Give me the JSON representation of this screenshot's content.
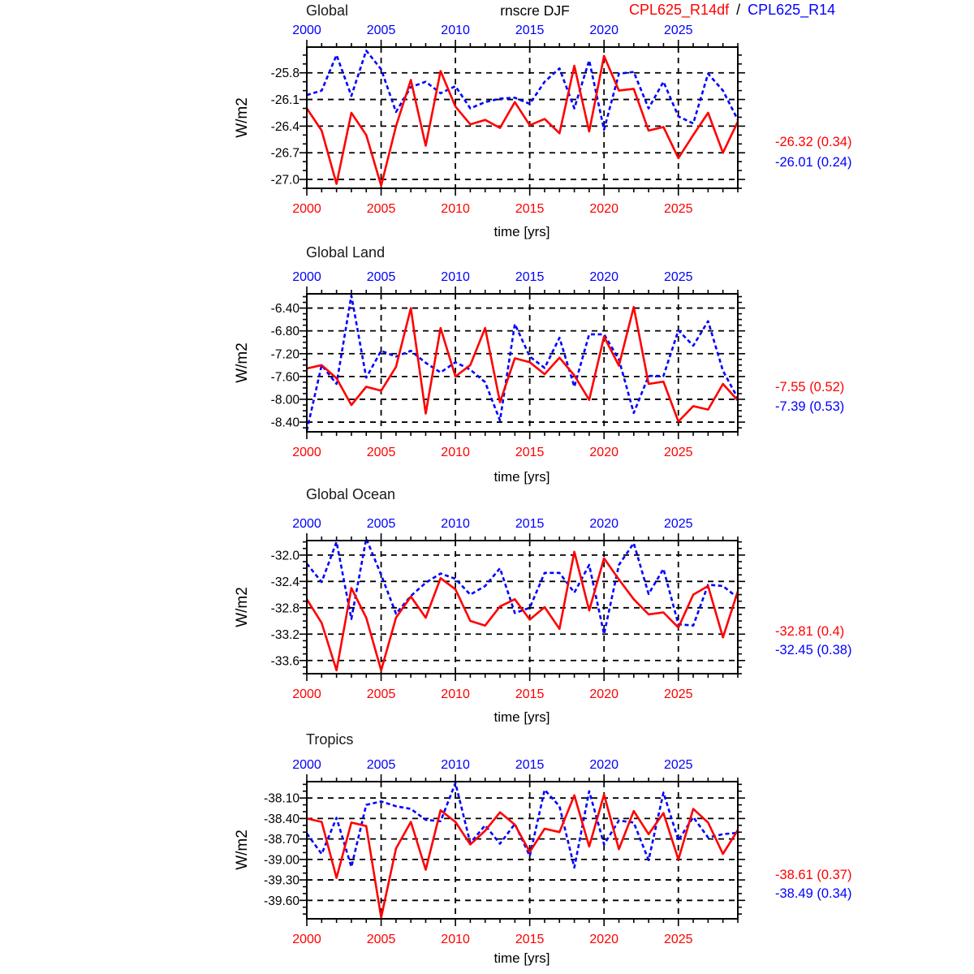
{
  "page": {
    "background": "#ffffff"
  },
  "header": {
    "center_title": "rnscre DJF",
    "legend": {
      "red_label": "CPL625_R14df",
      "separator": "/",
      "blue_label": "CPL625_R14"
    }
  },
  "colors": {
    "red": "#ff0000",
    "blue": "#0000ff",
    "axis": "#000000",
    "background": "#ffffff"
  },
  "chart_data": [
    {
      "type": "line",
      "title": "Global",
      "xlabel": "time [yrs]",
      "ylabel": "W/m2",
      "x_first": 2000,
      "x_last": 2029,
      "xticks": [
        2000,
        2005,
        2010,
        2015,
        2020,
        2025
      ],
      "yticks": [
        -25.8,
        -26.1,
        -26.4,
        -26.7,
        -27.0
      ],
      "ytick_decimals": 1,
      "y_minor_step": 0.1,
      "ylim": [
        -27.1,
        -25.51
      ],
      "grid": "dashed",
      "series": [
        {
          "name": "CPL625_R14df",
          "color": "#ff0000",
          "style": "solid",
          "values": [
            -26.2,
            -26.45,
            -27.05,
            -26.25,
            -26.5,
            -27.07,
            -26.4,
            -25.88,
            -26.62,
            -25.78,
            -26.18,
            -26.38,
            -26.33,
            -26.42,
            -26.13,
            -26.39,
            -26.32,
            -26.48,
            -25.72,
            -26.46,
            -25.61,
            -26.0,
            -25.98,
            -26.45,
            -26.41,
            -26.76,
            -26.5,
            -26.25,
            -26.7,
            -26.35
          ]
        },
        {
          "name": "CPL625_R14",
          "color": "#0000ff",
          "style": "dashed",
          "values": [
            -26.05,
            -26.0,
            -25.6,
            -26.06,
            -25.55,
            -25.76,
            -26.24,
            -25.96,
            -25.9,
            -26.03,
            -25.95,
            -26.2,
            -26.13,
            -26.09,
            -26.08,
            -26.15,
            -25.9,
            -25.75,
            -26.2,
            -25.66,
            -26.44,
            -25.81,
            -25.79,
            -26.2,
            -25.9,
            -26.29,
            -26.37,
            -25.81,
            -26.0,
            -26.33
          ]
        }
      ],
      "stats": [
        {
          "label": "-26.32 (0.34)",
          "color": "#ff0000"
        },
        {
          "label": "-26.01 (0.24)",
          "color": "#0000ff"
        }
      ]
    },
    {
      "type": "line",
      "title": "Global Land",
      "xlabel": "time [yrs]",
      "ylabel": "W/m2",
      "x_first": 2000,
      "x_last": 2029,
      "xticks": [
        2000,
        2005,
        2010,
        2015,
        2020,
        2025
      ],
      "yticks": [
        -6.4,
        -6.8,
        -7.2,
        -7.6,
        -8.0,
        -8.4
      ],
      "ytick_decimals": 2,
      "y_minor_step": 0.1,
      "ylim": [
        -8.57,
        -6.15
      ],
      "grid": "dashed",
      "series": [
        {
          "name": "CPL625_R14df",
          "color": "#ff0000",
          "style": "solid",
          "values": [
            -7.46,
            -7.4,
            -7.63,
            -8.1,
            -7.78,
            -7.85,
            -7.43,
            -6.4,
            -8.25,
            -6.75,
            -7.6,
            -7.4,
            -6.75,
            -8.05,
            -7.28,
            -7.35,
            -7.56,
            -7.27,
            -7.58,
            -8.01,
            -6.9,
            -7.41,
            -6.38,
            -7.73,
            -7.69,
            -8.39,
            -8.12,
            -8.18,
            -7.73,
            -8.02
          ]
        },
        {
          "name": "CPL625_R14",
          "color": "#0000ff",
          "style": "dashed",
          "values": [
            -8.55,
            -7.4,
            -7.73,
            -6.18,
            -7.62,
            -7.15,
            -7.25,
            -7.15,
            -7.36,
            -7.53,
            -7.35,
            -7.48,
            -7.7,
            -8.37,
            -6.68,
            -7.25,
            -7.45,
            -6.92,
            -7.78,
            -6.86,
            -6.86,
            -7.3,
            -8.24,
            -7.59,
            -7.59,
            -6.79,
            -7.06,
            -6.63,
            -7.5,
            -7.98
          ]
        }
      ],
      "stats": [
        {
          "label": "-7.55 (0.52)",
          "color": "#ff0000"
        },
        {
          "label": "-7.39 (0.53)",
          "color": "#0000ff"
        }
      ]
    },
    {
      "type": "line",
      "title": "Global Ocean",
      "xlabel": "time [yrs]",
      "ylabel": "W/m2",
      "x_first": 2000,
      "x_last": 2029,
      "xticks": [
        2000,
        2005,
        2010,
        2015,
        2020,
        2025
      ],
      "yticks": [
        -32.0,
        -32.4,
        -32.8,
        -33.2,
        -33.6
      ],
      "ytick_decimals": 1,
      "y_minor_step": 0.1,
      "ylim": [
        -33.8,
        -31.78
      ],
      "grid": "dashed",
      "series": [
        {
          "name": "CPL625_R14df",
          "color": "#ff0000",
          "style": "solid",
          "values": [
            -32.67,
            -33.03,
            -33.75,
            -32.5,
            -32.95,
            -33.75,
            -32.95,
            -32.63,
            -32.95,
            -32.35,
            -32.52,
            -33.0,
            -33.07,
            -32.78,
            -32.67,
            -32.98,
            -32.79,
            -33.12,
            -31.95,
            -32.84,
            -32.05,
            -32.37,
            -32.67,
            -32.9,
            -32.87,
            -33.1,
            -32.6,
            -32.47,
            -33.25,
            -32.55
          ]
        },
        {
          "name": "CPL625_R14",
          "color": "#0000ff",
          "style": "dashed",
          "values": [
            -32.13,
            -32.41,
            -31.8,
            -32.97,
            -31.75,
            -32.3,
            -32.89,
            -32.62,
            -32.42,
            -32.28,
            -32.36,
            -32.6,
            -32.47,
            -32.2,
            -32.88,
            -32.8,
            -32.27,
            -32.27,
            -32.57,
            -32.15,
            -33.2,
            -32.15,
            -31.82,
            -32.59,
            -32.21,
            -33.05,
            -33.07,
            -32.45,
            -32.47,
            -32.65
          ]
        }
      ],
      "stats": [
        {
          "label": "-32.81 (0.4)",
          "color": "#ff0000"
        },
        {
          "label": "-32.45 (0.38)",
          "color": "#0000ff"
        }
      ]
    },
    {
      "type": "line",
      "title": "Tropics",
      "xlabel": "time [yrs]",
      "ylabel": "W/m2",
      "x_first": 2000,
      "x_last": 2029,
      "xticks": [
        2000,
        2005,
        2010,
        2015,
        2020,
        2025
      ],
      "yticks": [
        -38.1,
        -38.4,
        -38.7,
        -39.0,
        -39.3,
        -39.6
      ],
      "ytick_decimals": 2,
      "y_minor_step": 0.1,
      "ylim": [
        -39.87,
        -37.86
      ],
      "grid": "dashed",
      "series": [
        {
          "name": "CPL625_R14df",
          "color": "#ff0000",
          "style": "solid",
          "values": [
            -38.4,
            -38.45,
            -39.27,
            -38.46,
            -38.51,
            -39.85,
            -38.84,
            -38.45,
            -39.15,
            -38.28,
            -38.45,
            -38.78,
            -38.58,
            -38.31,
            -38.49,
            -38.89,
            -38.55,
            -38.6,
            -38.06,
            -38.81,
            -38.05,
            -38.85,
            -38.29,
            -38.63,
            -38.32,
            -39.0,
            -38.26,
            -38.46,
            -38.92,
            -38.57
          ]
        },
        {
          "name": "CPL625_R14",
          "color": "#0000ff",
          "style": "dashed",
          "values": [
            -38.62,
            -38.92,
            -38.39,
            -39.11,
            -38.2,
            -38.15,
            -38.22,
            -38.26,
            -38.42,
            -38.44,
            -37.88,
            -38.76,
            -38.5,
            -38.77,
            -38.48,
            -38.95,
            -37.98,
            -38.22,
            -39.12,
            -38.0,
            -38.78,
            -38.43,
            -38.46,
            -39.01,
            -38.02,
            -38.72,
            -38.38,
            -38.68,
            -38.63,
            -38.61
          ]
        }
      ],
      "stats": [
        {
          "label": "-38.61 (0.37)",
          "color": "#ff0000"
        },
        {
          "label": "-38.49 (0.34)",
          "color": "#0000ff"
        }
      ]
    }
  ]
}
